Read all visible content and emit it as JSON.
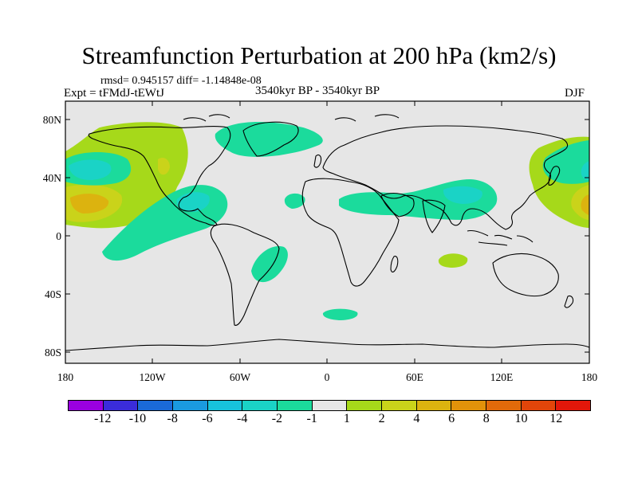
{
  "title": "Streamfunction Perturbation at 200 hPa (km2/s)",
  "stats": "rmsd= 0.945157 diff= -1.14848e-08",
  "experiment": "Expt = tFMdJ-tEWtJ",
  "period": "3540kyr BP - 3540kyr BP",
  "season": "DJF",
  "axes": {
    "y_ticks": [
      "80N",
      "40N",
      "0",
      "40S",
      "80S"
    ],
    "x_ticks": [
      "180",
      "120W",
      "60W",
      "0",
      "60E",
      "120E",
      "180"
    ]
  },
  "colorbar": {
    "colors": [
      "#9a00e0",
      "#3a2cdb",
      "#1a6ad8",
      "#1a9ae0",
      "#17c3dc",
      "#1ad3c6",
      "#1bdb9c",
      "#e6e6e6",
      "#a6d91a",
      "#cad31a",
      "#dcb30f",
      "#e2920a",
      "#e26a0a",
      "#e2450a",
      "#e2170a"
    ],
    "labels": [
      "-12",
      "-10",
      "-8",
      "-6",
      "-4",
      "-2",
      "-1",
      "1",
      "2",
      "4",
      "6",
      "8",
      "10",
      "12"
    ]
  },
  "colors": {
    "background": "#e6e6e6",
    "pos_1": "#a6d91a",
    "pos_2": "#cad31a",
    "pos_3": "#dcb30f",
    "neg_1": "#1bdb9c",
    "neg_2": "#1ad3c6"
  }
}
